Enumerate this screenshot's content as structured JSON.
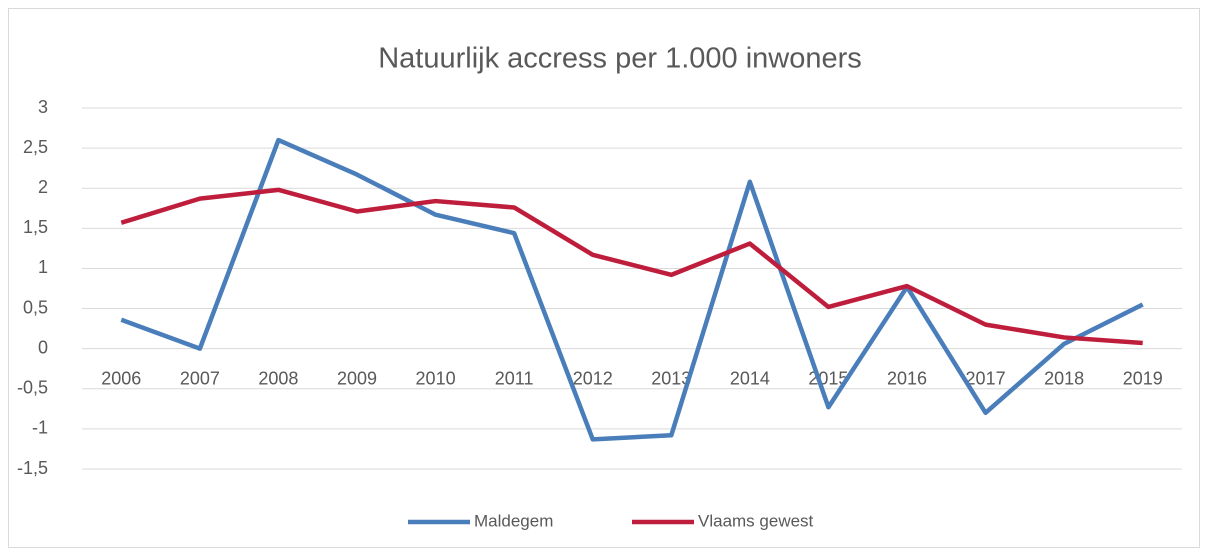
{
  "chart_data": {
    "type": "line",
    "title": "Natuurlijk accress per 1.000 inwoners",
    "categories": [
      "2006",
      "2007",
      "2008",
      "2009",
      "2010",
      "2011",
      "2012",
      "2013",
      "2014",
      "2015",
      "2016",
      "2017",
      "2018",
      "2019"
    ],
    "series": [
      {
        "name": "Maldegem",
        "color": "#4a7ebb",
        "values": [
          0.36,
          0,
          2.6,
          2.17,
          1.67,
          1.44,
          -1.13,
          -1.08,
          2.08,
          -0.73,
          0.77,
          -0.8,
          0.06,
          0.55
        ]
      },
      {
        "name": "Vlaams gewest",
        "color": "#be1e3c",
        "values": [
          1.57,
          1.87,
          1.98,
          1.71,
          1.84,
          1.76,
          1.17,
          0.92,
          1.31,
          0.52,
          0.78,
          0.3,
          0.14,
          0.07
        ]
      }
    ],
    "ylim": [
      -1.5,
      3
    ],
    "yticks": [
      {
        "value": -1.5,
        "label": "-1,5"
      },
      -1,
      {
        "value": -0.5,
        "label": "-0,5"
      },
      0,
      {
        "value": 0.5,
        "label": "0,5"
      },
      1,
      {
        "value": 1.5,
        "label": "1,5"
      },
      2,
      {
        "value": 2.5,
        "label": "2,5"
      },
      3
    ],
    "grid": true,
    "legend": "bottom"
  }
}
